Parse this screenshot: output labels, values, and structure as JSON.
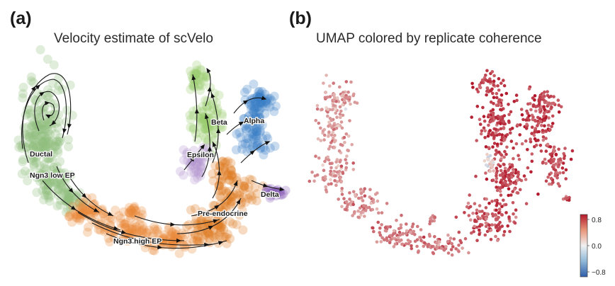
{
  "panels": [
    {
      "letter": "(a)",
      "title": "Velocity estimate of scVelo"
    },
    {
      "letter": "(b)",
      "title": "UMAP colored by replicate coherence"
    }
  ],
  "chart_data": [
    {
      "type": "scatter",
      "subtype": "umap-velocity-streamplot",
      "title": "Velocity estimate of scVelo",
      "clusters": [
        {
          "name": "Ductal",
          "color": "#8fbf7f"
        },
        {
          "name": "Ngn3 low EP",
          "color": "#8fbf7f"
        },
        {
          "name": "Ngn3 high EP",
          "color": "#e8893a"
        },
        {
          "name": "Pre-endocrine",
          "color": "#e07b22"
        },
        {
          "name": "Beta",
          "color": "#9ccb6e"
        },
        {
          "name": "Alpha",
          "color": "#3b7fc4"
        },
        {
          "name": "Epsilon",
          "color": "#b497cf"
        },
        {
          "name": "Delta",
          "color": "#8a5fb8"
        }
      ],
      "streamlines": true,
      "axes": false
    },
    {
      "type": "scatter",
      "subtype": "umap",
      "title": "UMAP colored by replicate coherence",
      "colorbar": {
        "min": -0.8,
        "max": 0.8,
        "ticks": [
          "0.8",
          "0.0",
          "−0.8"
        ],
        "colormap": "RdBu_r"
      },
      "axes": false
    }
  ]
}
